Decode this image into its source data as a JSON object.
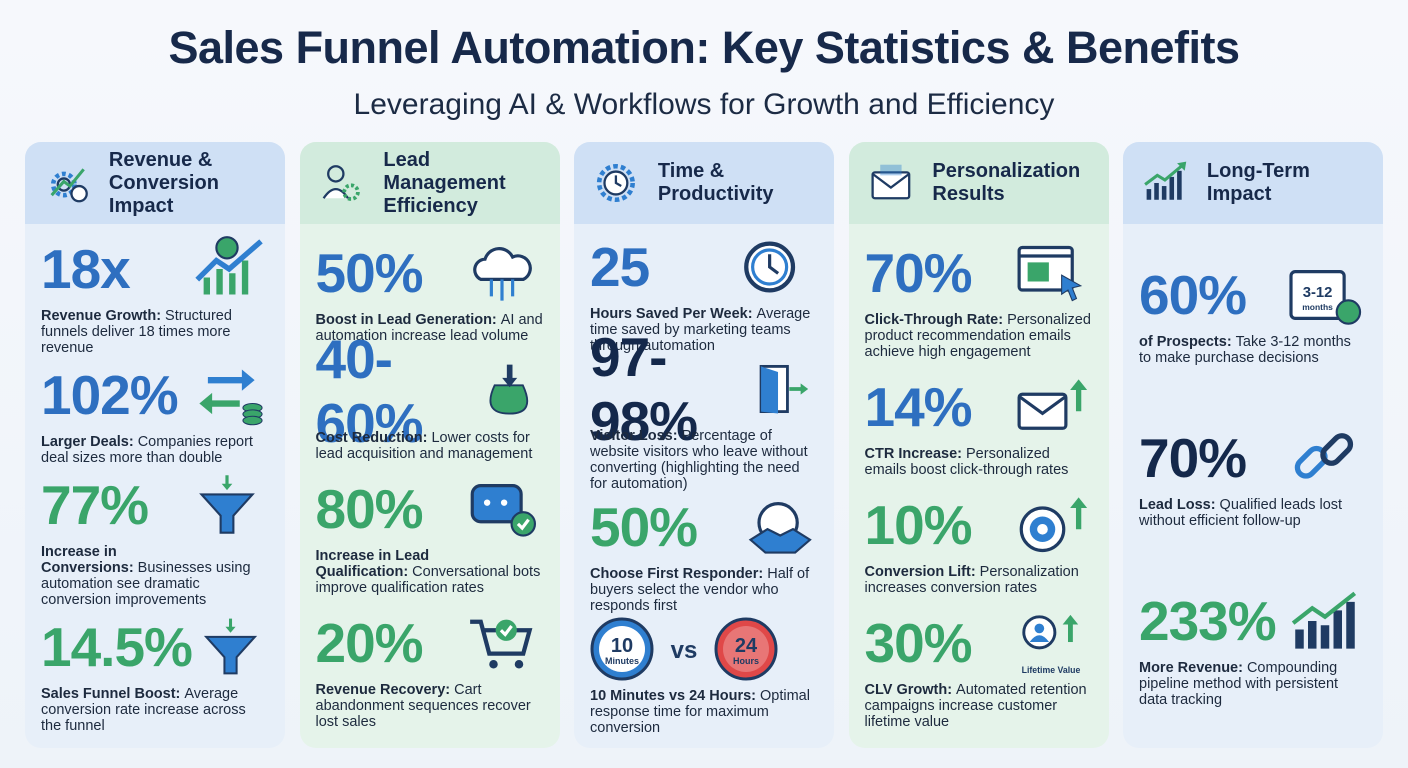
{
  "header": {
    "title": "Sales Funnel Automation: Key Statistics & Benefits",
    "subtitle": "Leveraging AI & Workflows for Growth and Efficiency"
  },
  "columns": [
    {
      "title": "Revenue & Conversion Impact",
      "stats": [
        {
          "value": "18x",
          "color": "#2e6fc0",
          "label": "Revenue Growth:",
          "text": "Structured funnels deliver 18 times more revenue"
        },
        {
          "value": "102%",
          "color": "#2e6fc0",
          "label": "Larger Deals:",
          "text": "Companies report deal sizes more than double"
        },
        {
          "value": "77%",
          "color": "#3aa56a",
          "label": "Increase in Conversions:",
          "text": "Businesses using automation see dramatic conversion improvements"
        },
        {
          "value": "14.5%",
          "color": "#3aa56a",
          "label": "Sales Funnel Boost:",
          "text": "Average conversion rate increase across the funnel"
        }
      ]
    },
    {
      "title": "Lead Management Efficiency",
      "stats": [
        {
          "value": "50%",
          "color": "#2e6fc0",
          "label": "Boost in Lead Generation:",
          "text": "AI and automation increase lead volume"
        },
        {
          "value": "40-60%",
          "color": "#2e6fc0",
          "label": "Cost Reduction:",
          "text": "Lower costs for lead acquisition and management"
        },
        {
          "value": "80%",
          "color": "#3aa56a",
          "label": "Increase in Lead Qualification:",
          "text": "Conversational bots improve qualification rates"
        },
        {
          "value": "20%",
          "color": "#3aa56a",
          "label": "Revenue Recovery:",
          "text": "Cart abandonment sequences recover lost sales"
        }
      ]
    },
    {
      "title": "Time & Productivity",
      "stats": [
        {
          "value": "25",
          "color": "#2e6fc0",
          "label": "Hours Saved Per Week:",
          "text": "Average time saved by marketing teams through automation"
        },
        {
          "value": "97-98%",
          "color": "#14284b",
          "label": "Visitor Loss:",
          "text": "Percentage of website visitors who leave without converting (highlighting the need for automation)"
        },
        {
          "value": "50%",
          "color": "#3aa56a",
          "label": "Choose First Responder:",
          "text": "Half of buyers select the vendor who responds first"
        },
        {
          "icon_text": [
            "10",
            "Minutes",
            "vs",
            "24",
            "Hours"
          ],
          "label": "10 Minutes vs 24 Hours:",
          "text": "Optimal response time for maximum conversion"
        }
      ]
    },
    {
      "title": "Personalization Results",
      "stats": [
        {
          "value": "70%",
          "color": "#2e6fc0",
          "label": "Click-Through Rate:",
          "text": "Personalized product recommendation emails achieve high engagement"
        },
        {
          "value": "14%",
          "color": "#2e6fc0",
          "label": "CTR Increase:",
          "text": "Personalized emails boost click-through rates"
        },
        {
          "value": "10%",
          "color": "#3aa56a",
          "label": "Conversion Lift:",
          "text": "Personalization increases conversion rates"
        },
        {
          "value": "30%",
          "color": "#3aa56a",
          "icon_text": [
            "Lifetime Value"
          ],
          "label": "CLV Growth:",
          "text": "Automated retention campaigns increase customer lifetime value"
        }
      ]
    },
    {
      "title": "Long-Term Impact",
      "stats": [
        {
          "value": "60%",
          "color": "#2e6fc0",
          "icon_text": [
            "3-12",
            "months"
          ],
          "label": "of Prospects:",
          "text": "Take 3-12 months to make purchase decisions"
        },
        {
          "value": "70%",
          "color": "#14284b",
          "label": "Lead Loss:",
          "text": "Qualified leads lost without efficient follow-up"
        },
        {
          "value": "233%",
          "color": "#3aa56a",
          "label": "More Revenue:",
          "text": "Compounding pipeline method with persistent data tracking"
        }
      ]
    }
  ]
}
